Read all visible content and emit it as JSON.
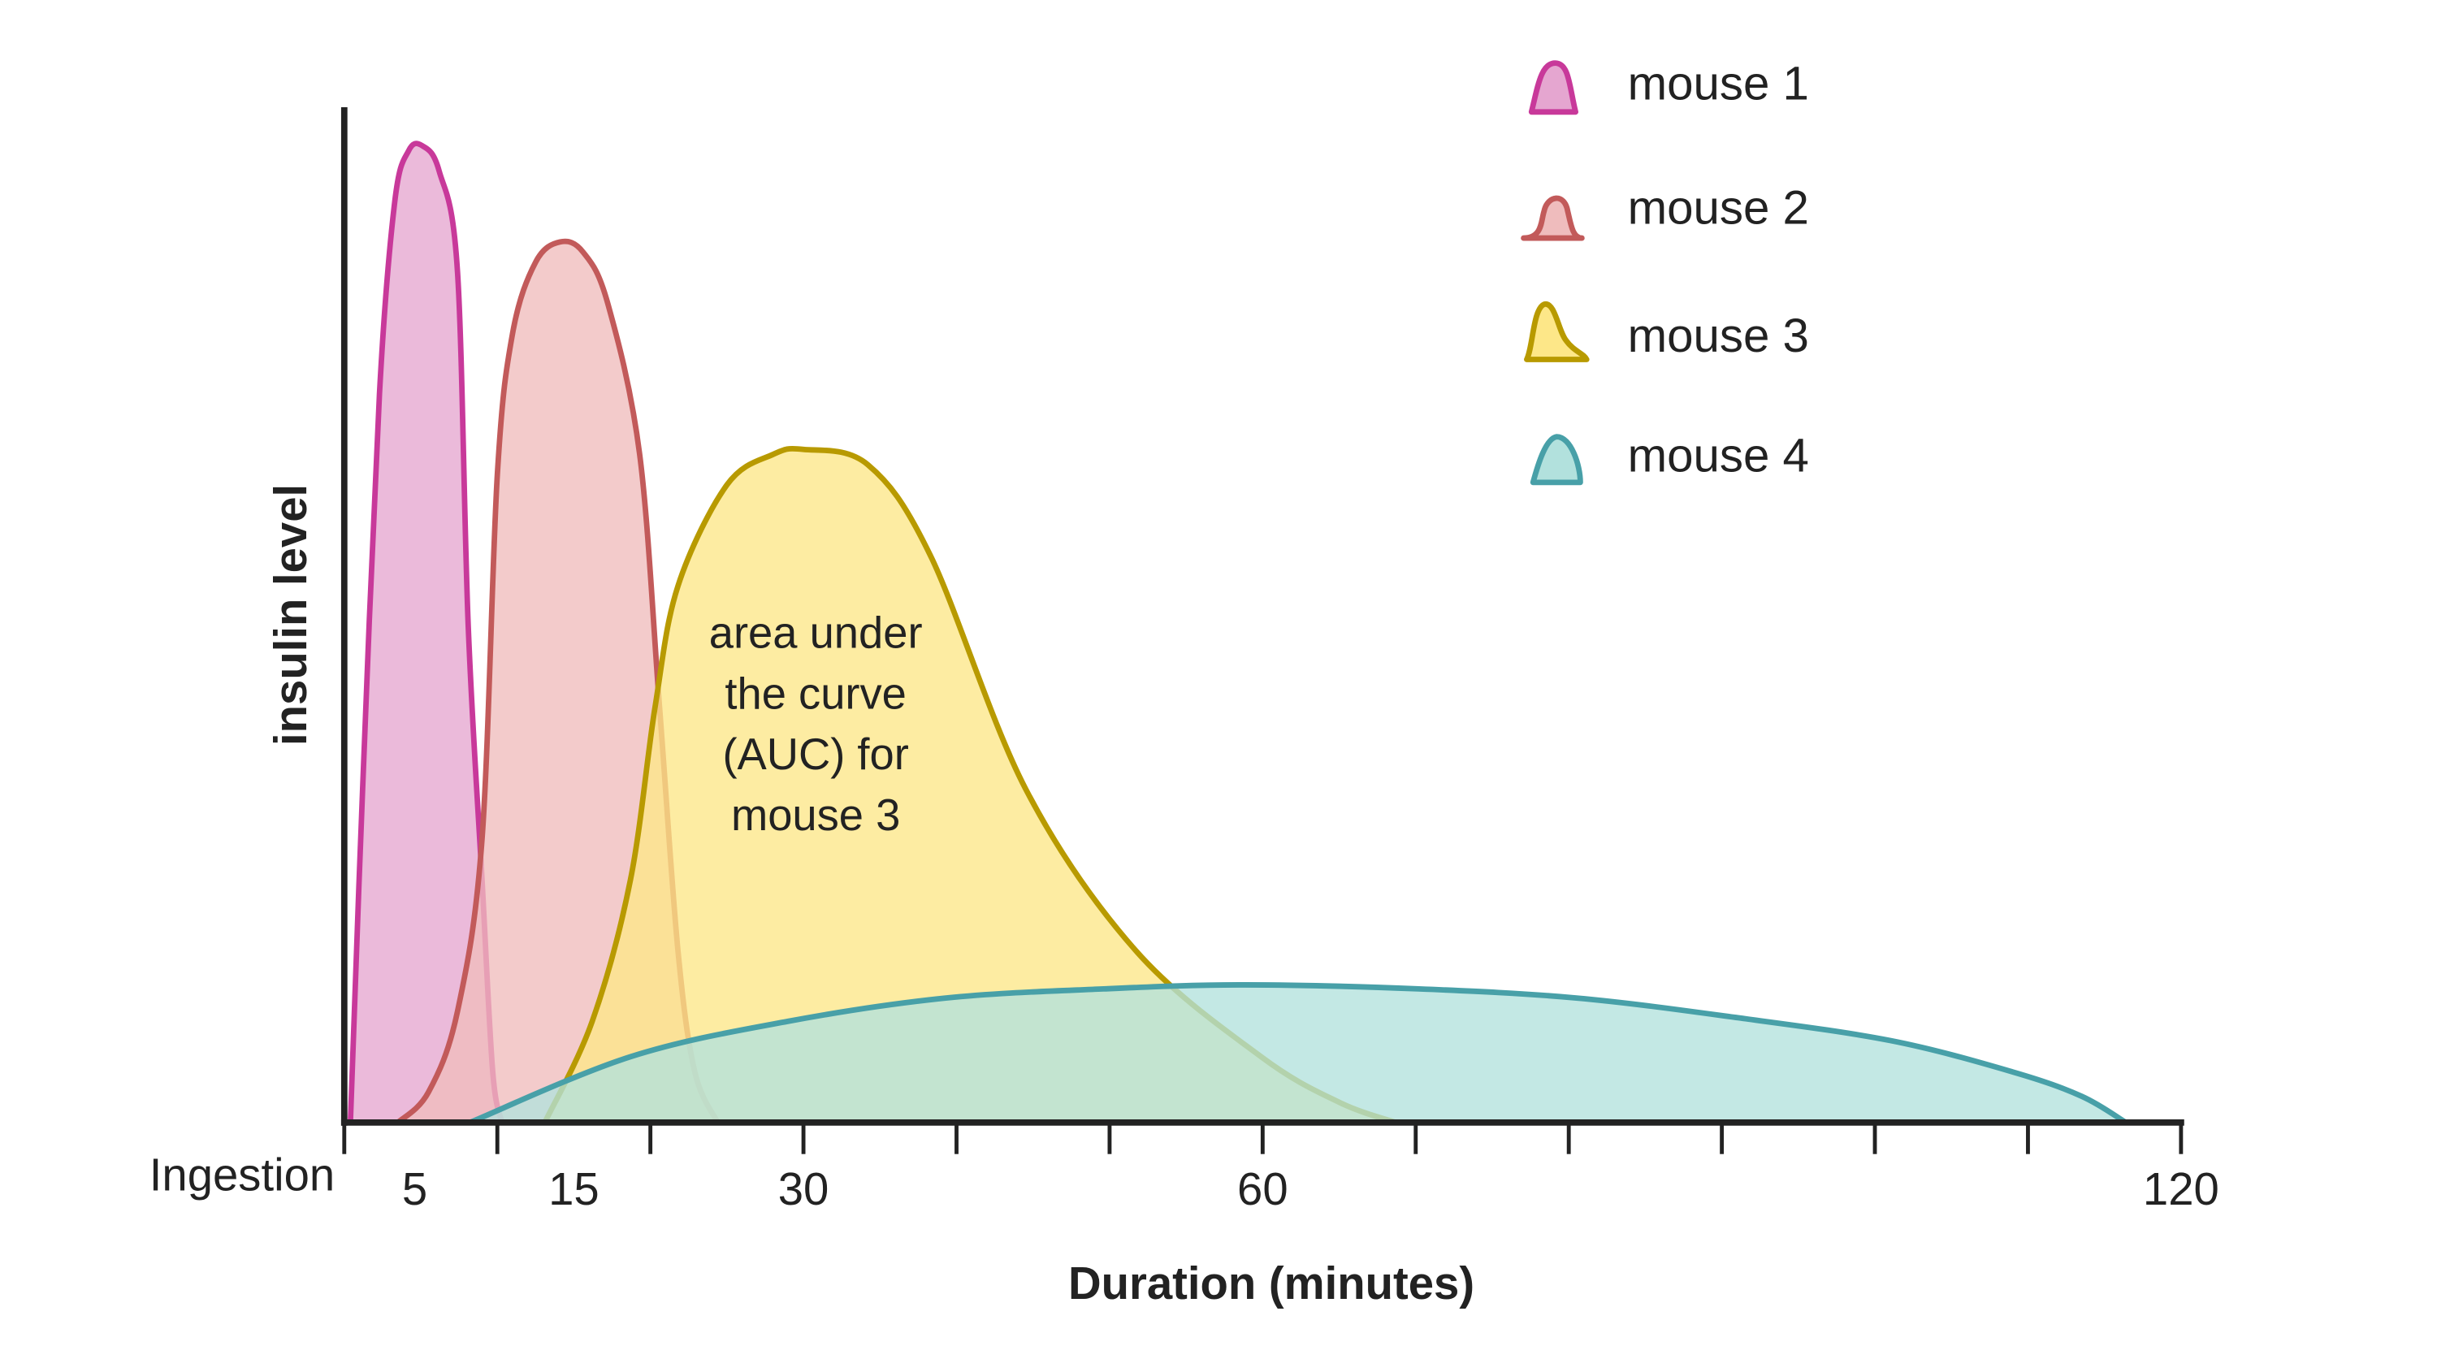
{
  "chart_data": {
    "type": "area",
    "xlabel": "Duration (minutes)",
    "ylabel": "insulin level",
    "xlim": [
      0,
      120
    ],
    "ylim": [
      0,
      100
    ],
    "x_ticks": [
      0,
      10,
      20,
      30,
      40,
      50,
      60,
      70,
      80,
      90,
      100,
      110,
      120
    ],
    "x_tick_labels": [
      {
        "value": 0,
        "label": "Ingestion"
      },
      {
        "value": 4.6,
        "label": "5"
      },
      {
        "value": 15,
        "label": "15"
      },
      {
        "value": 30,
        "label": "30"
      },
      {
        "value": 60,
        "label": "60"
      },
      {
        "value": 120,
        "label": "120"
      }
    ],
    "grid": false,
    "legend_placement": "top-right",
    "annotation": {
      "lines": [
        "area under",
        "the curve",
        "(AUC) for",
        "mouse 3"
      ],
      "x": 30.8
    },
    "series": [
      {
        "name": "mouse 1",
        "stroke": "#c8399a",
        "fill": "#e5a6d0",
        "points": [
          [
            0.4,
            0
          ],
          [
            1.2,
            33
          ],
          [
            2.3,
            72
          ],
          [
            3.3,
            91
          ],
          [
            4.2,
            96
          ],
          [
            5.1,
            96.5
          ],
          [
            6.2,
            94
          ],
          [
            7.4,
            84
          ],
          [
            8.1,
            49
          ],
          [
            9,
            24
          ],
          [
            9.7,
            5
          ],
          [
            10.3,
            0
          ]
        ]
      },
      {
        "name": "mouse 2",
        "stroke": "#c25a5a",
        "fill": "#efbcbd",
        "points": [
          [
            3.5,
            0
          ],
          [
            5.5,
            3
          ],
          [
            7.4,
            11
          ],
          [
            9,
            28
          ],
          [
            10,
            64
          ],
          [
            11,
            78
          ],
          [
            12.5,
            85
          ],
          [
            14.1,
            87
          ],
          [
            15.6,
            86
          ],
          [
            17.2,
            81
          ],
          [
            19.3,
            66
          ],
          [
            20.6,
            41
          ],
          [
            21.8,
            17
          ],
          [
            22.9,
            5
          ],
          [
            24.4,
            0
          ]
        ]
      },
      {
        "name": "mouse 3",
        "stroke": "#b89a00",
        "fill": "#fde788",
        "points": [
          [
            13.1,
            0
          ],
          [
            16.2,
            10
          ],
          [
            18.7,
            24
          ],
          [
            20.3,
            41
          ],
          [
            21.8,
            53
          ],
          [
            25,
            63
          ],
          [
            28,
            66
          ],
          [
            30,
            66.5
          ],
          [
            34.2,
            65
          ],
          [
            38.3,
            56
          ],
          [
            44.5,
            33
          ],
          [
            51.7,
            17
          ],
          [
            59.9,
            6.5
          ],
          [
            65,
            2
          ],
          [
            68.7,
            0
          ]
        ]
      },
      {
        "name": "mouse 4",
        "stroke": "#48a0a8",
        "fill": "#b2e1dd",
        "points": [
          [
            8.2,
            0
          ],
          [
            18.7,
            6.5
          ],
          [
            29,
            10
          ],
          [
            39.3,
            12.3
          ],
          [
            49.6,
            13.2
          ],
          [
            58.9,
            13.6
          ],
          [
            70.2,
            13.2
          ],
          [
            80.5,
            12.3
          ],
          [
            90.8,
            10.4
          ],
          [
            101,
            8.1
          ],
          [
            109,
            5
          ],
          [
            113.5,
            2.6
          ],
          [
            116.4,
            0
          ]
        ]
      }
    ]
  }
}
